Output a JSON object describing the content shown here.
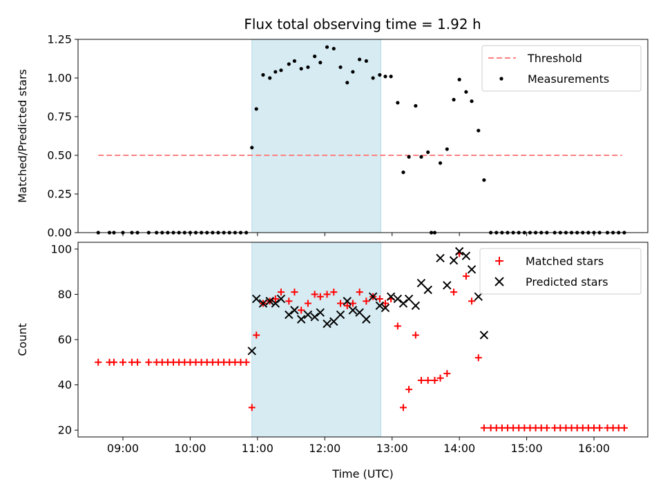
{
  "title": "Flux total observing time = 1.92 h",
  "shaded_span": {
    "start": "10:55",
    "end": "12:50",
    "color": "#add8e6"
  },
  "chart_data": [
    {
      "type": "scatter",
      "title": "Flux total observing time = 1.92 h",
      "xlabel": "",
      "ylabel": "Matched/Predicted stars",
      "xlim": [
        "08:20",
        "16:48"
      ],
      "ylim": [
        0,
        1.25
      ],
      "x_ticks": [
        "09:00",
        "10:00",
        "11:00",
        "12:00",
        "13:00",
        "14:00",
        "15:00",
        "16:00"
      ],
      "y_ticks": [
        "0.00",
        "0.25",
        "0.50",
        "0.75",
        "1.00",
        "1.25"
      ],
      "legend_position": "top-right",
      "series": [
        {
          "name": "Threshold",
          "kind": "dashed-line",
          "color": "#ff7f7f",
          "x": [
            "08:38",
            "16:25"
          ],
          "y": [
            0.5,
            0.5
          ]
        },
        {
          "name": "Measurements",
          "kind": "dot",
          "color": "#000000",
          "points": [
            [
              "08:38",
              0
            ],
            [
              "08:48",
              0
            ],
            [
              "08:52",
              0
            ],
            [
              "09:00",
              0
            ],
            [
              "09:08",
              0
            ],
            [
              "09:13",
              0
            ],
            [
              "09:23",
              0
            ],
            [
              "09:30",
              0
            ],
            [
              "09:35",
              0
            ],
            [
              "09:40",
              0
            ],
            [
              "09:45",
              0
            ],
            [
              "09:50",
              0
            ],
            [
              "09:55",
              0
            ],
            [
              "10:00",
              0
            ],
            [
              "10:05",
              0
            ],
            [
              "10:10",
              0
            ],
            [
              "10:15",
              0
            ],
            [
              "10:20",
              0
            ],
            [
              "10:25",
              0
            ],
            [
              "10:30",
              0
            ],
            [
              "10:35",
              0
            ],
            [
              "10:40",
              0
            ],
            [
              "10:45",
              0
            ],
            [
              "10:50",
              0
            ],
            [
              "10:55",
              0.55
            ],
            [
              "10:59",
              0.8
            ],
            [
              "11:05",
              1.02
            ],
            [
              "11:11",
              1.0
            ],
            [
              "11:16",
              1.04
            ],
            [
              "11:21",
              1.05
            ],
            [
              "11:28",
              1.09
            ],
            [
              "11:33",
              1.11
            ],
            [
              "11:39",
              1.06
            ],
            [
              "11:45",
              1.07
            ],
            [
              "11:51",
              1.14
            ],
            [
              "11:56",
              1.1
            ],
            [
              "12:02",
              1.2
            ],
            [
              "12:08",
              1.19
            ],
            [
              "12:14",
              1.07
            ],
            [
              "12:20",
              0.97
            ],
            [
              "12:25",
              1.04
            ],
            [
              "12:31",
              1.12
            ],
            [
              "12:37",
              1.11
            ],
            [
              "12:43",
              1.0
            ],
            [
              "12:49",
              1.02
            ],
            [
              "12:54",
              1.01
            ],
            [
              "12:59",
              1.01
            ],
            [
              "13:05",
              0.84
            ],
            [
              "13:10",
              0.39
            ],
            [
              "13:15",
              0.49
            ],
            [
              "13:21",
              0.82
            ],
            [
              "13:26",
              0.49
            ],
            [
              "13:32",
              0.52
            ],
            [
              "13:35",
              0
            ],
            [
              "13:38",
              0
            ],
            [
              "13:43",
              0.45
            ],
            [
              "13:49",
              0.54
            ],
            [
              "13:55",
              0.86
            ],
            [
              "14:00",
              0.99
            ],
            [
              "14:06",
              0.91
            ],
            [
              "14:11",
              0.85
            ],
            [
              "14:17",
              0.66
            ],
            [
              "14:22",
              0.34
            ],
            [
              "14:28",
              0
            ],
            [
              "14:33",
              0
            ],
            [
              "14:38",
              0
            ],
            [
              "14:43",
              0
            ],
            [
              "14:48",
              0
            ],
            [
              "14:53",
              0
            ],
            [
              "14:58",
              0
            ],
            [
              "15:03",
              0
            ],
            [
              "15:08",
              0
            ],
            [
              "15:13",
              0
            ],
            [
              "15:18",
              0
            ],
            [
              "15:25",
              0
            ],
            [
              "15:30",
              0
            ],
            [
              "15:35",
              0
            ],
            [
              "15:40",
              0
            ],
            [
              "15:45",
              0
            ],
            [
              "15:50",
              0
            ],
            [
              "15:55",
              0
            ],
            [
              "16:00",
              0
            ],
            [
              "16:05",
              0
            ],
            [
              "16:12",
              0
            ],
            [
              "16:17",
              0
            ],
            [
              "16:22",
              0
            ],
            [
              "16:27",
              0
            ]
          ]
        }
      ]
    },
    {
      "type": "scatter",
      "title": "",
      "xlabel": "Time (UTC)",
      "ylabel": "Count",
      "xlim": [
        "08:20",
        "16:48"
      ],
      "ylim": [
        17,
        103
      ],
      "x_ticks": [
        "09:00",
        "10:00",
        "11:00",
        "12:00",
        "13:00",
        "14:00",
        "15:00",
        "16:00"
      ],
      "y_ticks": [
        "20",
        "40",
        "60",
        "80",
        "100"
      ],
      "legend_position": "top-right",
      "series": [
        {
          "name": "Matched stars",
          "kind": "plus",
          "color": "#ff0000",
          "points": [
            [
              "08:38",
              50
            ],
            [
              "08:48",
              50
            ],
            [
              "08:52",
              50
            ],
            [
              "09:00",
              50
            ],
            [
              "09:08",
              50
            ],
            [
              "09:13",
              50
            ],
            [
              "09:23",
              50
            ],
            [
              "09:30",
              50
            ],
            [
              "09:35",
              50
            ],
            [
              "09:40",
              50
            ],
            [
              "09:45",
              50
            ],
            [
              "09:50",
              50
            ],
            [
              "09:55",
              50
            ],
            [
              "10:00",
              50
            ],
            [
              "10:05",
              50
            ],
            [
              "10:10",
              50
            ],
            [
              "10:15",
              50
            ],
            [
              "10:20",
              50
            ],
            [
              "10:25",
              50
            ],
            [
              "10:30",
              50
            ],
            [
              "10:35",
              50
            ],
            [
              "10:40",
              50
            ],
            [
              "10:45",
              50
            ],
            [
              "10:50",
              50
            ],
            [
              "10:55",
              30
            ],
            [
              "10:59",
              62
            ],
            [
              "11:05",
              76
            ],
            [
              "11:11",
              77
            ],
            [
              "11:16",
              78
            ],
            [
              "11:21",
              81
            ],
            [
              "11:28",
              77
            ],
            [
              "11:33",
              81
            ],
            [
              "11:39",
              73
            ],
            [
              "11:45",
              76
            ],
            [
              "11:51",
              80
            ],
            [
              "11:56",
              79
            ],
            [
              "12:02",
              80
            ],
            [
              "12:08",
              81
            ],
            [
              "12:14",
              76
            ],
            [
              "12:20",
              75
            ],
            [
              "12:25",
              76
            ],
            [
              "12:31",
              81
            ],
            [
              "12:37",
              77
            ],
            [
              "12:43",
              79
            ],
            [
              "12:49",
              78
            ],
            [
              "12:54",
              76
            ],
            [
              "12:59",
              78
            ],
            [
              "13:05",
              66
            ],
            [
              "13:10",
              30
            ],
            [
              "13:15",
              38
            ],
            [
              "13:21",
              62
            ],
            [
              "13:26",
              42
            ],
            [
              "13:32",
              42
            ],
            [
              "13:38",
              42
            ],
            [
              "13:43",
              43
            ],
            [
              "13:49",
              45
            ],
            [
              "13:55",
              81
            ],
            [
              "14:00",
              98
            ],
            [
              "14:06",
              88
            ],
            [
              "14:11",
              77
            ],
            [
              "14:17",
              52
            ],
            [
              "14:22",
              21
            ],
            [
              "14:28",
              21
            ],
            [
              "14:33",
              21
            ],
            [
              "14:38",
              21
            ],
            [
              "14:43",
              21
            ],
            [
              "14:48",
              21
            ],
            [
              "14:53",
              21
            ],
            [
              "14:58",
              21
            ],
            [
              "15:03",
              21
            ],
            [
              "15:08",
              21
            ],
            [
              "15:13",
              21
            ],
            [
              "15:18",
              21
            ],
            [
              "15:25",
              21
            ],
            [
              "15:30",
              21
            ],
            [
              "15:35",
              21
            ],
            [
              "15:40",
              21
            ],
            [
              "15:45",
              21
            ],
            [
              "15:50",
              21
            ],
            [
              "15:55",
              21
            ],
            [
              "16:00",
              21
            ],
            [
              "16:05",
              21
            ],
            [
              "16:12",
              21
            ],
            [
              "16:17",
              21
            ],
            [
              "16:22",
              21
            ],
            [
              "16:27",
              21
            ]
          ]
        },
        {
          "name": "Predicted stars",
          "kind": "x",
          "color": "#000000",
          "points": [
            [
              "10:55",
              55
            ],
            [
              "10:59",
              78
            ],
            [
              "11:05",
              76
            ],
            [
              "11:11",
              77
            ],
            [
              "11:16",
              76
            ],
            [
              "11:21",
              78
            ],
            [
              "11:28",
              71
            ],
            [
              "11:33",
              73
            ],
            [
              "11:39",
              69
            ],
            [
              "11:45",
              71
            ],
            [
              "11:51",
              70
            ],
            [
              "11:56",
              72
            ],
            [
              "12:02",
              67
            ],
            [
              "12:08",
              68
            ],
            [
              "12:14",
              71
            ],
            [
              "12:20",
              77
            ],
            [
              "12:25",
              73
            ],
            [
              "12:31",
              72
            ],
            [
              "12:37",
              69
            ],
            [
              "12:43",
              79
            ],
            [
              "12:49",
              75
            ],
            [
              "12:54",
              74
            ],
            [
              "12:59",
              79
            ],
            [
              "13:05",
              78
            ],
            [
              "13:10",
              76
            ],
            [
              "13:15",
              78
            ],
            [
              "13:21",
              75
            ],
            [
              "13:26",
              85
            ],
            [
              "13:32",
              82
            ],
            [
              "13:43",
              96
            ],
            [
              "13:49",
              84
            ],
            [
              "13:55",
              95
            ],
            [
              "14:00",
              99
            ],
            [
              "14:06",
              97
            ],
            [
              "14:11",
              91
            ],
            [
              "14:17",
              79
            ],
            [
              "14:22",
              62
            ]
          ]
        }
      ]
    }
  ]
}
